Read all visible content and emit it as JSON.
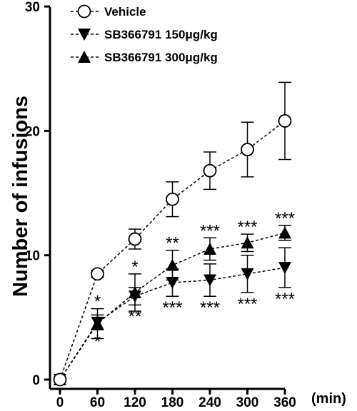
{
  "chart_data": {
    "type": "line",
    "ylabel": "Number of infusions",
    "x_unit_label": "(min)",
    "x": [
      0,
      60,
      120,
      180,
      240,
      300,
      360
    ],
    "xticks": [
      "0",
      "60",
      "120",
      "180",
      "240",
      "300",
      "360"
    ],
    "ylim": [
      0,
      30
    ],
    "yticks": [
      "0",
      "10",
      "20",
      "30"
    ],
    "legend_position": "top-left",
    "series": [
      {
        "name": "Vehicle",
        "marker": "open-circle",
        "values": [
          0,
          8.5,
          11.3,
          14.5,
          16.8,
          18.5,
          20.8
        ],
        "errors": [
          0,
          0.3,
          0.8,
          1.4,
          1.5,
          2.2,
          3.1
        ],
        "sig_above": [
          "",
          "",
          "",
          "",
          "",
          "",
          ""
        ],
        "sig_below": [
          "",
          "",
          "",
          "",
          "",
          "",
          ""
        ]
      },
      {
        "name": "SB366791 150μg/kg",
        "marker": "filled-triangle-down",
        "values": [
          0,
          4.6,
          6.7,
          7.8,
          8.0,
          8.5,
          9.0
        ],
        "errors": [
          0,
          0.6,
          0.7,
          1.1,
          1.3,
          1.5,
          1.6
        ],
        "sig_above": [
          "",
          "",
          "",
          "",
          "",
          "",
          ""
        ],
        "sig_below": [
          "",
          "*",
          "**",
          "***",
          "***",
          "***",
          "***"
        ]
      },
      {
        "name": "SB366791 300μg/kg",
        "marker": "filled-triangle-up",
        "values": [
          0,
          4.5,
          7.0,
          9.2,
          10.5,
          11.0,
          11.8
        ],
        "errors": [
          0,
          1.2,
          1.5,
          1.2,
          0.9,
          0.7,
          0.6
        ],
        "sig_above": [
          "",
          "*",
          "*",
          "**",
          "***",
          "***",
          "***"
        ],
        "sig_below": [
          "",
          "",
          "",
          "",
          "",
          "",
          ""
        ]
      }
    ]
  }
}
